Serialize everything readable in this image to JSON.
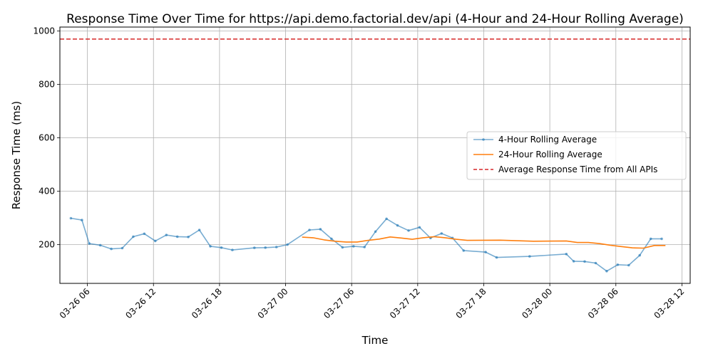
{
  "chart_data": {
    "type": "line",
    "title": "Response Time Over Time for https://api.demo.factorial.dev/api (4-Hour and 24-Hour Rolling Average)",
    "xlabel": "Time",
    "ylabel": "Response Time (ms)",
    "x_ticks": [
      "03-26 06",
      "03-26 12",
      "03-26 18",
      "03-27 00",
      "03-27 06",
      "03-27 12",
      "03-27 18",
      "03-28 00",
      "03-28 06",
      "03-28 12"
    ],
    "y_ticks": [
      "200",
      "400",
      "600",
      "800",
      "1000"
    ],
    "ylim": [
      55,
      1015
    ],
    "xlim": [
      "2024-03-26 03:30",
      "2024-03-28 12:45"
    ],
    "grid": true,
    "legend_position": "center-right",
    "series": [
      {
        "name": "4-Hour Rolling Average",
        "color": "#1f77b4",
        "style": "line-with-dots",
        "points": [
          [
            "2024-03-26 04:30",
            299
          ],
          [
            "2024-03-26 05:30",
            292
          ],
          [
            "2024-03-26 06:10",
            204
          ],
          [
            "2024-03-26 07:10",
            198
          ],
          [
            "2024-03-26 08:10",
            184
          ],
          [
            "2024-03-26 09:10",
            187
          ],
          [
            "2024-03-26 10:10",
            230
          ],
          [
            "2024-03-26 11:10",
            241
          ],
          [
            "2024-03-26 12:10",
            214
          ],
          [
            "2024-03-26 13:10",
            236
          ],
          [
            "2024-03-26 14:10",
            230
          ],
          [
            "2024-03-26 15:10",
            229
          ],
          [
            "2024-03-26 16:10",
            255
          ],
          [
            "2024-03-26 17:10",
            194
          ],
          [
            "2024-03-26 18:10",
            189
          ],
          [
            "2024-03-26 19:10",
            180
          ],
          [
            "2024-03-26 21:10",
            188
          ],
          [
            "2024-03-26 22:10",
            189
          ],
          [
            "2024-03-26 23:10",
            191
          ],
          [
            "2024-03-27 00:10",
            200
          ],
          [
            "2024-03-27 02:10",
            255
          ],
          [
            "2024-03-27 03:10",
            258
          ],
          [
            "2024-03-27 04:10",
            222
          ],
          [
            "2024-03-27 05:10",
            190
          ],
          [
            "2024-03-27 06:10",
            194
          ],
          [
            "2024-03-27 07:10",
            191
          ],
          [
            "2024-03-27 08:10",
            249
          ],
          [
            "2024-03-27 09:10",
            297
          ],
          [
            "2024-03-27 10:10",
            272
          ],
          [
            "2024-03-27 11:10",
            253
          ],
          [
            "2024-03-27 12:10",
            265
          ],
          [
            "2024-03-27 13:10",
            225
          ],
          [
            "2024-03-27 14:10",
            242
          ],
          [
            "2024-03-27 15:10",
            225
          ],
          [
            "2024-03-27 16:10",
            178
          ],
          [
            "2024-03-27 18:10",
            172
          ],
          [
            "2024-03-27 19:10",
            152
          ],
          [
            "2024-03-27 22:10",
            156
          ],
          [
            "2024-03-28 01:30",
            165
          ],
          [
            "2024-03-28 02:10",
            138
          ],
          [
            "2024-03-28 03:10",
            137
          ],
          [
            "2024-03-28 04:10",
            131
          ],
          [
            "2024-03-28 05:10",
            101
          ],
          [
            "2024-03-28 06:10",
            125
          ],
          [
            "2024-03-28 07:10",
            123
          ],
          [
            "2024-03-28 08:10",
            160
          ],
          [
            "2024-03-28 09:10",
            222
          ],
          [
            "2024-03-28 10:10",
            222
          ]
        ]
      },
      {
        "name": "24-Hour Rolling Average",
        "color": "#ff7f0e",
        "style": "line",
        "points": [
          [
            "2024-03-27 01:30",
            228
          ],
          [
            "2024-03-27 02:30",
            226
          ],
          [
            "2024-03-27 03:30",
            218
          ],
          [
            "2024-03-27 04:30",
            213
          ],
          [
            "2024-03-27 05:30",
            210
          ],
          [
            "2024-03-27 06:30",
            210
          ],
          [
            "2024-03-27 07:30",
            216
          ],
          [
            "2024-03-27 08:30",
            221
          ],
          [
            "2024-03-27 09:30",
            229
          ],
          [
            "2024-03-27 10:30",
            225
          ],
          [
            "2024-03-27 11:30",
            220
          ],
          [
            "2024-03-27 12:30",
            226
          ],
          [
            "2024-03-27 13:30",
            230
          ],
          [
            "2024-03-27 14:30",
            226
          ],
          [
            "2024-03-27 15:30",
            220
          ],
          [
            "2024-03-27 16:30",
            216
          ],
          [
            "2024-03-27 19:30",
            217
          ],
          [
            "2024-03-27 22:30",
            213
          ],
          [
            "2024-03-28 01:30",
            214
          ],
          [
            "2024-03-28 02:30",
            208
          ],
          [
            "2024-03-28 03:30",
            208
          ],
          [
            "2024-03-28 04:30",
            204
          ],
          [
            "2024-03-28 05:30",
            198
          ],
          [
            "2024-03-28 06:30",
            193
          ],
          [
            "2024-03-28 07:30",
            188
          ],
          [
            "2024-03-28 08:30",
            187
          ],
          [
            "2024-03-28 09:30",
            197
          ],
          [
            "2024-03-28 10:30",
            197
          ]
        ]
      },
      {
        "name": "Average Response Time from All APIs",
        "color": "#d62728",
        "style": "dashed-hline",
        "value": 970
      }
    ]
  }
}
